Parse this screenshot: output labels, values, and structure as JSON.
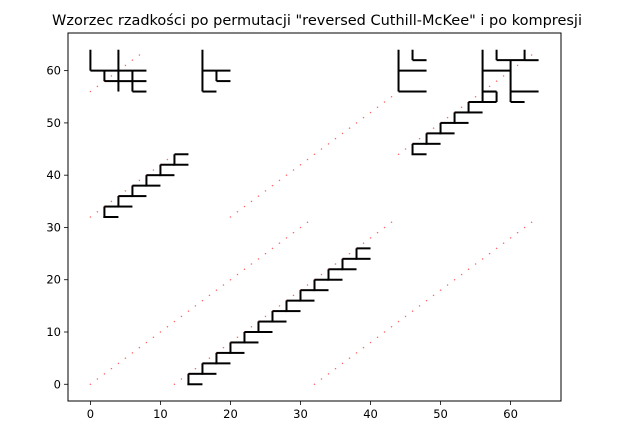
{
  "chart_data": {
    "type": "scatter",
    "title": "Wzorzec rzadkości po permutacji \"reversed Cuthill-McKee\" i po kompresji",
    "xlabel": "",
    "ylabel": "",
    "xlim": [
      -3.2,
      67.2
    ],
    "ylim": [
      -3.2,
      67.2
    ],
    "x_ticks": [
      0,
      10,
      20,
      30,
      40,
      50,
      60
    ],
    "y_ticks": [
      0,
      10,
      20,
      30,
      40,
      50,
      60
    ],
    "x_tick_labels": [
      "0",
      "10",
      "20",
      "30",
      "40",
      "50",
      "60"
    ],
    "y_tick_labels": [
      "0",
      "10",
      "20",
      "30",
      "40",
      "50",
      "60"
    ],
    "grid": false,
    "series": [
      {
        "marker": "dot",
        "color": "#ff6666",
        "diagonals": [
          {
            "x_start": 0,
            "y_start": 0,
            "count": 32
          },
          {
            "x_start": 12,
            "y_start": 0,
            "count": 32
          },
          {
            "x_start": 32,
            "y_start": 0,
            "count": 32
          },
          {
            "x_start": 0,
            "y_start": 32,
            "count": 12
          },
          {
            "x_start": 20,
            "y_start": 32,
            "count": 24
          },
          {
            "x_start": 44,
            "y_start": 44,
            "count": 12
          },
          {
            "x_start": 0,
            "y_start": 56,
            "count": 8
          },
          {
            "x_start": 56,
            "y_start": 56,
            "count": 8
          }
        ]
      },
      {
        "marker": "bracket-segments",
        "color": "#000000",
        "staircases": [
          {
            "x_start": 14,
            "y_start": 0,
            "steps": 13
          },
          {
            "x_start": 2,
            "y_start": 32,
            "steps": 6
          },
          {
            "x_start": 46,
            "y_start": 44,
            "steps": 6
          }
        ],
        "segments": [
          [
            0,
            64,
            0,
            60
          ],
          [
            0,
            60,
            8,
            60
          ],
          [
            2,
            60,
            2,
            58
          ],
          [
            2,
            58,
            4,
            58
          ],
          [
            4,
            64,
            4,
            56
          ],
          [
            4,
            58,
            8,
            58
          ],
          [
            6,
            60,
            6,
            56
          ],
          [
            6,
            56,
            8,
            56
          ],
          [
            16,
            64,
            16,
            56
          ],
          [
            16,
            60,
            20,
            60
          ],
          [
            18,
            60,
            18,
            58
          ],
          [
            18,
            58,
            20,
            58
          ],
          [
            16,
            56,
            18,
            56
          ],
          [
            44,
            64,
            44,
            56
          ],
          [
            44,
            56,
            48,
            56
          ],
          [
            44,
            60,
            48,
            60
          ],
          [
            46,
            64,
            46,
            62
          ],
          [
            46,
            62,
            48,
            62
          ],
          [
            56,
            64,
            56,
            56
          ],
          [
            56,
            60,
            60,
            60
          ],
          [
            58,
            64,
            58,
            62
          ],
          [
            58,
            62,
            62,
            62
          ],
          [
            60,
            62,
            60,
            56
          ],
          [
            60,
            56,
            64,
            56
          ],
          [
            56,
            56,
            58,
            56
          ],
          [
            58,
            56,
            58,
            54
          ],
          [
            60,
            56,
            60,
            54
          ],
          [
            60,
            54,
            62,
            54
          ],
          [
            62,
            64,
            62,
            62
          ],
          [
            62,
            62,
            64,
            62
          ]
        ]
      }
    ]
  }
}
